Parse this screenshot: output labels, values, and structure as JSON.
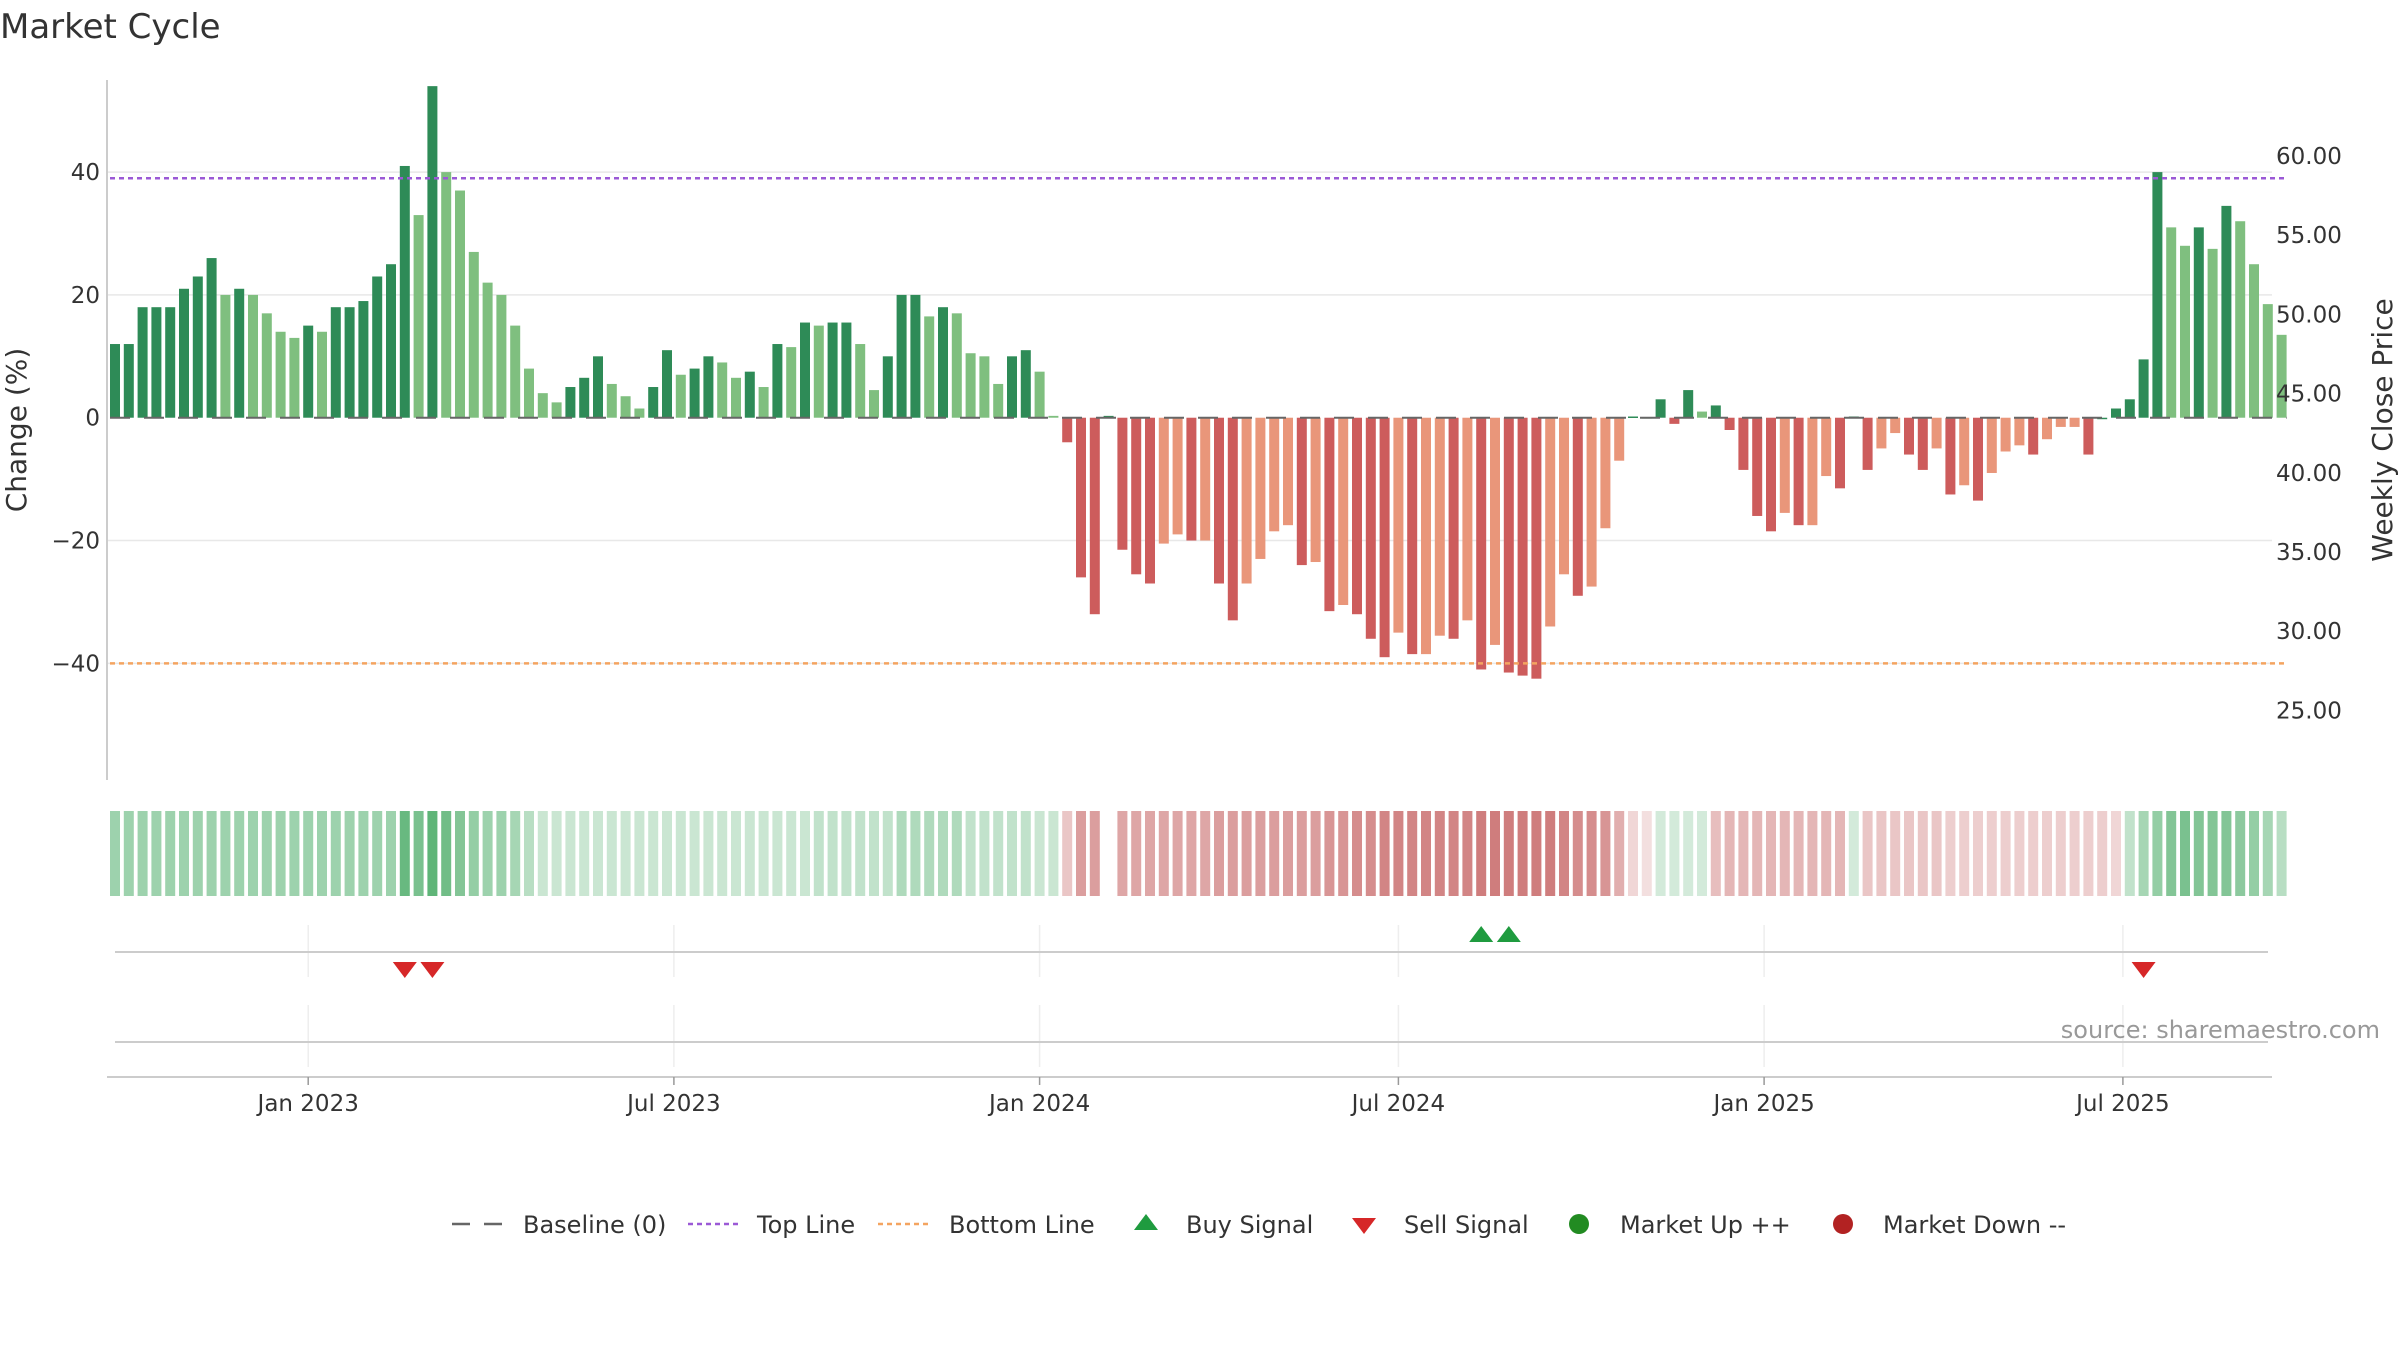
{
  "chart_data": {
    "type": "bar",
    "title": "Market Cycle",
    "ylabel": "Change (%)",
    "y2label": "Weekly Close Price",
    "ylim": [
      -59,
      55
    ],
    "y_ticks": [
      40,
      20,
      0,
      -20,
      -40
    ],
    "y_tick_labels": [
      "40",
      "20",
      "0",
      "−20",
      "−40"
    ],
    "y2lim": [
      20.6,
      64.8
    ],
    "y2_ticks": [
      60,
      55,
      50,
      45,
      40,
      35,
      30,
      25
    ],
    "y2_tick_labels": [
      "60.00",
      "55.00",
      "50.00",
      "45.00",
      "40.00",
      "35.00",
      "30.00",
      "25.00"
    ],
    "x_ticks": [
      "Jan 2023",
      "Jul 2023",
      "Jan 2024",
      "Jul 2024",
      "Jan 2025",
      "Jul 2025"
    ],
    "x_tick_weeks": [
      14,
      40.5,
      67,
      93,
      119.5,
      145.5
    ],
    "top_line": 39,
    "bottom_line": -40,
    "colors": {
      "up_strong": "#2e8b57",
      "up_weak": "#7fbf7f",
      "down_strong": "#cd5c5c",
      "down_weak": "#e9967a",
      "top_line": "#9b59d6",
      "bottom_line": "#f4a460",
      "buy": "#1f9b3f",
      "sell": "#d62728",
      "market_up": "#228b22",
      "market_down": "#b22222",
      "baseline": "#666666"
    },
    "values": [
      12,
      12,
      18,
      18,
      18,
      21,
      23,
      26,
      20,
      21,
      20,
      17,
      14,
      13,
      15,
      14,
      18,
      18,
      19,
      23,
      25,
      41,
      33,
      54,
      40,
      37,
      27,
      22,
      20,
      15,
      8,
      4,
      2.5,
      5,
      6.5,
      10,
      5.5,
      3.5,
      1.5,
      5,
      11,
      7,
      8,
      10,
      9,
      6.5,
      7.5,
      5,
      12,
      11.5,
      15.5,
      15,
      15.5,
      15.5,
      12,
      4.5,
      10,
      20,
      20,
      16.5,
      18,
      17,
      10.5,
      10,
      5.5,
      10,
      11,
      7.5,
      0.3,
      -4,
      -26,
      -32,
      0.3,
      -21.5,
      -25.5,
      -27,
      -20.5,
      -19,
      -20,
      -20,
      -27,
      -33,
      -27,
      -23,
      -18.5,
      -17.5,
      -24,
      -23.5,
      -31.5,
      -30.5,
      -32,
      -36,
      -39,
      -35,
      -38.5,
      -38.5,
      -35.5,
      -36,
      -33,
      -41,
      -37,
      -41.5,
      -42,
      -42.5,
      -34,
      -25.5,
      -29,
      -27.5,
      -18,
      -7,
      0.2,
      0.1,
      3,
      -1,
      4.5,
      1,
      2,
      -2,
      -8.5,
      -16,
      -18.5,
      -15.5,
      -17.5,
      -17.5,
      -9.5,
      -11.5,
      0.2,
      -8.5,
      -5,
      -2.5,
      -6,
      -8.5,
      -5,
      -12.5,
      -11,
      -13.5,
      -9,
      -5.5,
      -4.5,
      -6,
      -3.5,
      -1.5,
      -1.5,
      -6,
      0,
      1.5,
      3,
      9.5,
      40,
      31,
      28,
      31,
      27.5,
      34.5,
      32,
      25,
      18.5,
      13.5
    ],
    "colorbar": [
      0.55,
      0.55,
      0.55,
      0.55,
      0.55,
      0.55,
      0.55,
      0.55,
      0.55,
      0.55,
      0.55,
      0.55,
      0.55,
      0.55,
      0.55,
      0.55,
      0.55,
      0.55,
      0.55,
      0.55,
      0.55,
      0.85,
      0.75,
      0.9,
      0.8,
      0.7,
      0.6,
      0.55,
      0.55,
      0.5,
      0.4,
      0.3,
      0.3,
      0.3,
      0.3,
      0.3,
      0.3,
      0.3,
      0.3,
      0.3,
      0.3,
      0.3,
      0.3,
      0.3,
      0.3,
      0.3,
      0.3,
      0.3,
      0.3,
      0.3,
      0.3,
      0.35,
      0.35,
      0.35,
      0.35,
      0.35,
      0.35,
      0.45,
      0.45,
      0.45,
      0.45,
      0.45,
      0.35,
      0.35,
      0.35,
      0.35,
      0.35,
      0.3,
      0.3,
      -0.35,
      -0.6,
      -0.6,
      0,
      -0.55,
      -0.55,
      -0.55,
      -0.55,
      -0.55,
      -0.55,
      -0.55,
      -0.6,
      -0.6,
      -0.6,
      -0.6,
      -0.6,
      -0.6,
      -0.6,
      -0.6,
      -0.65,
      -0.65,
      -0.7,
      -0.7,
      -0.75,
      -0.75,
      -0.75,
      -0.75,
      -0.75,
      -0.75,
      -0.75,
      -0.8,
      -0.8,
      -0.8,
      -0.8,
      -0.8,
      -0.8,
      -0.75,
      -0.7,
      -0.7,
      -0.65,
      -0.5,
      -0.25,
      -0.2,
      0.25,
      0.25,
      0.25,
      0.25,
      -0.4,
      -0.45,
      -0.45,
      -0.45,
      -0.45,
      -0.45,
      -0.45,
      -0.45,
      -0.45,
      -0.45,
      0.25,
      -0.35,
      -0.35,
      -0.35,
      -0.35,
      -0.35,
      -0.35,
      -0.3,
      -0.3,
      -0.3,
      -0.3,
      -0.3,
      -0.3,
      -0.3,
      -0.3,
      -0.3,
      -0.3,
      -0.3,
      -0.3,
      -0.25,
      0.35,
      0.5,
      0.6,
      0.7,
      0.75,
      0.7,
      0.7,
      0.7,
      0.65,
      0.6,
      0.5,
      0.4
    ],
    "buy_signals": [
      99,
      101
    ],
    "sell_signals": [
      21,
      23,
      147
    ],
    "legend": [
      "Baseline (0)",
      "Top Line",
      "Bottom Line",
      "Buy Signal",
      "Sell Signal",
      "Market Up ++",
      "Market Down --"
    ],
    "source": "source: sharemaestro.com"
  }
}
